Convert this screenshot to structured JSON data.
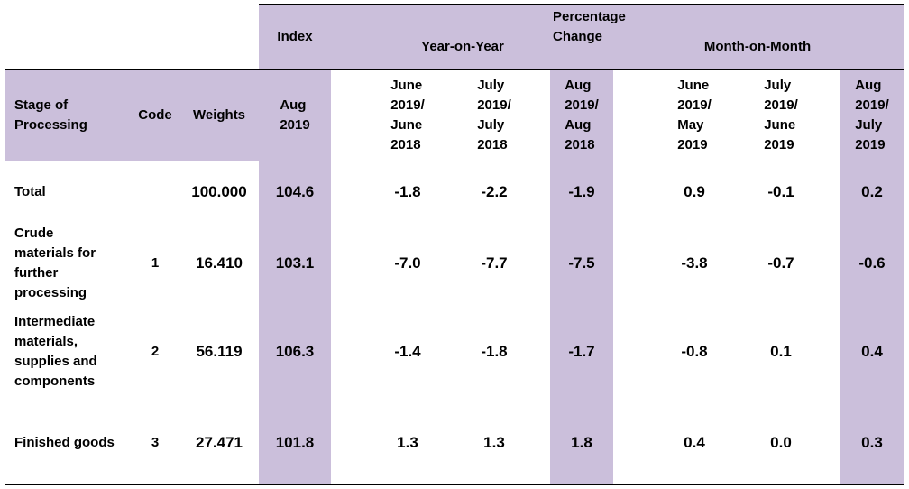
{
  "header": {
    "index": "Index",
    "percentage_change": "Percentage Change",
    "year_on_year": "Year-on-Year",
    "month_on_month": "Month-on-Month"
  },
  "columns": [
    "Stage of\nProcessing",
    "Code",
    "Weights",
    "Aug\n2019",
    "June\n2019/\nJune\n2018",
    "July\n2019/\nJuly\n2018",
    "Aug\n2019/\nAug\n2018",
    "June\n2019/\nMay\n2019",
    "July\n2019/\nJune\n2019",
    "Aug\n2019/\nJuly\n2019"
  ],
  "rows": [
    {
      "stage": "Total",
      "weights": "100.000",
      "index": "104.6",
      "yoy": [
        "-1.8",
        "-2.2",
        "-1.9"
      ],
      "mom": [
        "0.9",
        "-0.1",
        "0.2"
      ]
    },
    {
      "stage": "Crude\nmaterials for\nfurther\nprocessing",
      "code": "1",
      "weights": "16.410",
      "index": "103.1",
      "yoy": [
        "-7.0",
        "-7.7",
        "-7.5"
      ],
      "mom": [
        "-3.8",
        "-0.7",
        "-0.6"
      ]
    },
    {
      "stage": "Intermediate\nmaterials,\nsupplies and\ncomponents",
      "code": "2",
      "weights": "56.119",
      "index": "106.3",
      "yoy": [
        "-1.4",
        "-1.8",
        "-1.7"
      ],
      "mom": [
        "-0.8",
        "0.1",
        "0.4"
      ]
    },
    {
      "stage": "Finished goods",
      "code": "3",
      "weights": "27.471",
      "index": "101.8",
      "yoy": [
        "1.3",
        "1.3",
        "1.8"
      ],
      "mom": [
        "0.4",
        "0.0",
        "0.3"
      ]
    }
  ]
}
